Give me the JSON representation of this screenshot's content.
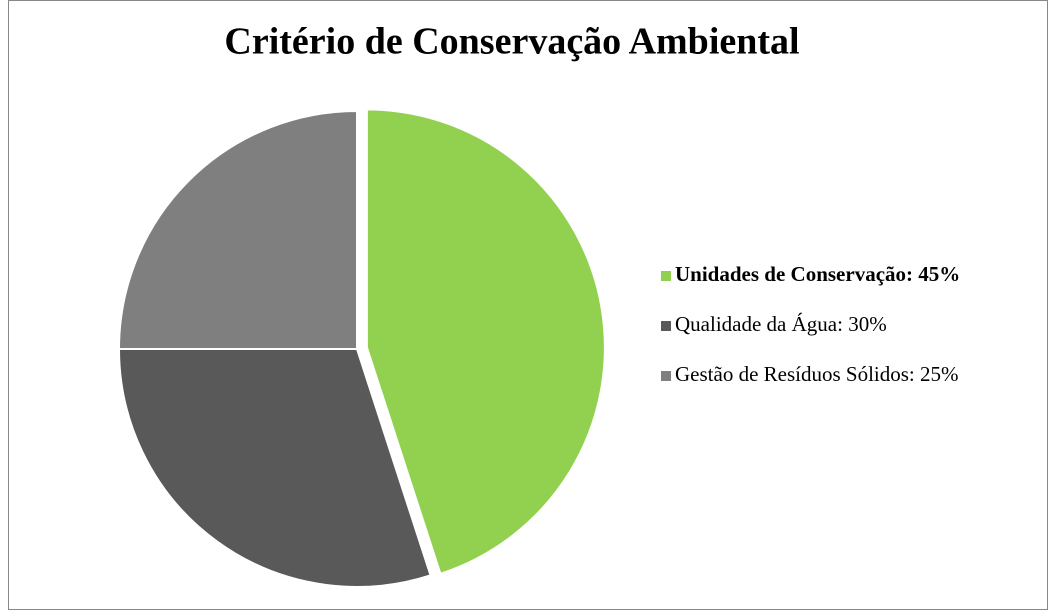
{
  "chart_data": {
    "type": "pie",
    "title": "Critério de Conservação Ambiental",
    "categories": [
      "Unidades de Conservação: 45%",
      "Qualidade da Água: 30%",
      "Gestão de Resíduos Sólidos: 25%"
    ],
    "values": [
      45,
      30,
      25
    ],
    "colors": [
      "#92d050",
      "#595959",
      "#7f7f7f"
    ],
    "highlight_index": 0,
    "legend": "right"
  }
}
